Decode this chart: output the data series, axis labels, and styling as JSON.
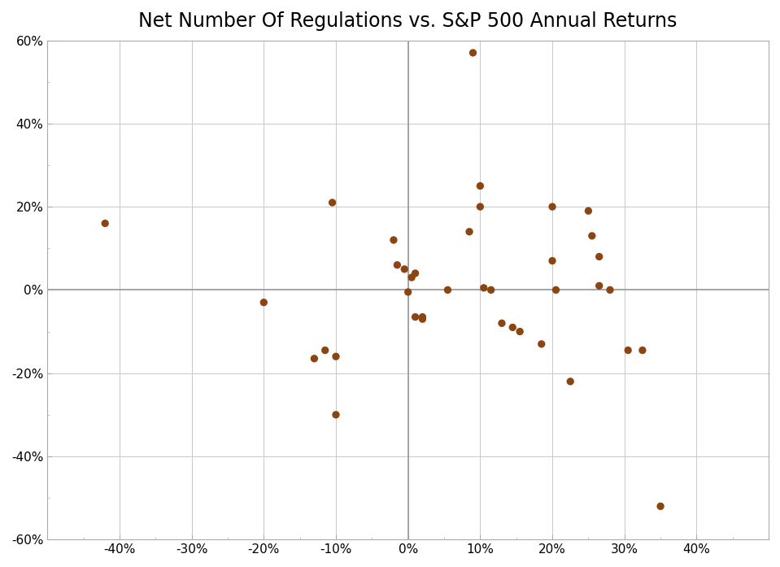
{
  "title": "Net Number Of Regulations vs. S&P 500 Annual Returns",
  "xlim": [
    -0.5,
    0.5
  ],
  "ylim": [
    -0.6,
    0.6
  ],
  "xticks": [
    -0.4,
    -0.3,
    -0.2,
    -0.1,
    0.0,
    0.1,
    0.2,
    0.3,
    0.4
  ],
  "yticks": [
    -0.6,
    -0.4,
    -0.2,
    0.0,
    0.2,
    0.4,
    0.6
  ],
  "xticklabels": [
    "-40%",
    "-30%",
    "-20%",
    "-10%",
    "0%",
    "10%",
    "20%",
    "30%",
    "40%"
  ],
  "yticklabels": [
    "-60%",
    "-40%",
    "-20%",
    "0%",
    "20%",
    "40%",
    "60%"
  ],
  "dot_color": "#8B4513",
  "background_color": "#ffffff",
  "grid_color": "#c8c8c8",
  "axis_line_color": "#999999",
  "spine_color": "#aaaaaa",
  "data_x": [
    -0.42,
    -0.2,
    -0.13,
    -0.115,
    -0.105,
    -0.1,
    -0.1,
    -0.02,
    -0.015,
    -0.005,
    0.0,
    0.005,
    0.01,
    0.01,
    0.02,
    0.02,
    0.055,
    0.085,
    0.09,
    0.1,
    0.1,
    0.105,
    0.115,
    0.13,
    0.145,
    0.155,
    0.185,
    0.2,
    0.2,
    0.205,
    0.225,
    0.25,
    0.255,
    0.265,
    0.265,
    0.28,
    0.305,
    0.325,
    0.35
  ],
  "data_y": [
    0.16,
    -0.03,
    -0.165,
    -0.145,
    0.21,
    -0.16,
    -0.3,
    0.12,
    0.06,
    0.05,
    -0.005,
    0.03,
    0.04,
    -0.065,
    -0.07,
    -0.065,
    0.0,
    0.14,
    0.57,
    0.25,
    0.2,
    0.005,
    0.0,
    -0.08,
    -0.09,
    -0.1,
    -0.13,
    0.2,
    0.07,
    0.0,
    -0.22,
    0.19,
    0.13,
    0.08,
    0.01,
    0.0,
    -0.145,
    -0.145,
    -0.52
  ],
  "title_fontsize": 17,
  "tick_fontsize": 11,
  "dot_size": 45,
  "grid_linewidth": 0.7,
  "axis_linewidth": 1.2
}
